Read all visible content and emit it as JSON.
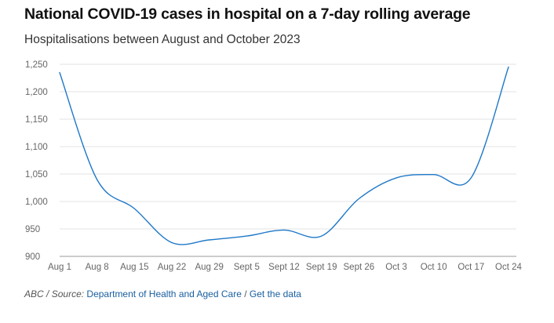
{
  "header": {
    "title": "National COVID-19 cases in hospital on a 7-day rolling average",
    "subtitle": "Hospitalisations between August and October 2023"
  },
  "footer": {
    "credit": "ABC",
    "separator1": "/",
    "source_label": "Source:",
    "source_link": "Department of Health and Aged Care",
    "separator2": "/",
    "data_link": "Get the data"
  },
  "colors": {
    "line": "#1f78c8",
    "grid": "#e3e3e3",
    "axis": "#9a9a9a",
    "link": "#1a5fa0"
  },
  "chart_data": {
    "type": "line",
    "title": "National COVID-19 cases in hospital on a 7-day rolling average",
    "subtitle": "Hospitalisations between August and October 2023",
    "xlabel": "",
    "ylabel": "",
    "x_ticks": [
      "Aug 1",
      "Aug 8",
      "Aug 15",
      "Aug 22",
      "Aug 29",
      "Sept 5",
      "Sept 12",
      "Sept 19",
      "Sept 26",
      "Oct 3",
      "Oct 10",
      "Oct 17",
      "Oct 24"
    ],
    "y_ticks": [
      900,
      950,
      1000,
      1050,
      1100,
      1150,
      1200,
      1250
    ],
    "y_tick_labels": [
      "900",
      "950",
      "1,000",
      "1,050",
      "1,100",
      "1,150",
      "1,200",
      "1,250"
    ],
    "ylim": [
      900,
      1250
    ],
    "grid": true,
    "series": [
      {
        "values": [
          1235,
          1040,
          987,
          925,
          930,
          937,
          948,
          937,
          1005,
          1043,
          1049,
          1043,
          1245
        ]
      }
    ]
  }
}
